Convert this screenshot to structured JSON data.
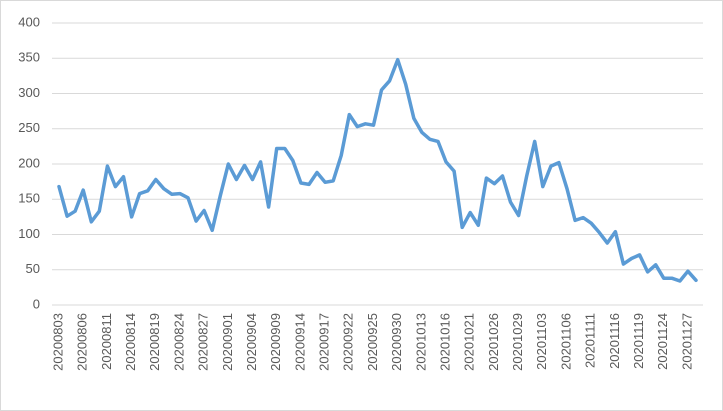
{
  "chart_data": {
    "type": "line",
    "categories": [
      "20200803",
      null,
      null,
      "20200806",
      null,
      null,
      "20200811",
      null,
      null,
      "20200814",
      null,
      null,
      "20200819",
      null,
      null,
      "20200824",
      null,
      null,
      "20200827",
      null,
      null,
      "20200901",
      null,
      null,
      "20200904",
      null,
      null,
      "20200909",
      null,
      null,
      "20200914",
      null,
      null,
      "20200917",
      null,
      null,
      "20200922",
      null,
      null,
      "20200925",
      null,
      null,
      "20200930",
      null,
      null,
      "20201013",
      null,
      null,
      "20201016",
      null,
      null,
      "20201021",
      null,
      null,
      "20201026",
      null,
      null,
      "20201029",
      null,
      null,
      "20201103",
      null,
      null,
      "20201106",
      null,
      null,
      "20201111",
      null,
      null,
      "20201116",
      null,
      null,
      "20201119",
      null,
      null,
      "20201124",
      null,
      null,
      "20201127",
      null
    ],
    "series": [
      {
        "color": "#5b9bd5",
        "values": [
          168,
          126,
          133,
          163,
          118,
          133,
          197,
          168,
          182,
          125,
          158,
          162,
          178,
          165,
          157,
          158,
          152,
          119,
          134,
          106,
          155,
          200,
          178,
          198,
          178,
          203,
          139,
          222,
          222,
          205,
          173,
          171,
          188,
          174,
          176,
          212,
          270,
          253,
          257,
          255,
          305,
          318,
          348,
          313,
          265,
          245,
          235,
          232,
          203,
          190,
          110,
          131,
          113,
          180,
          172,
          183,
          146,
          127,
          183,
          232,
          168,
          197,
          202,
          165,
          120,
          124,
          116,
          103,
          88,
          104,
          58,
          66,
          71,
          47,
          57,
          38,
          38,
          34,
          48,
          35
        ]
      }
    ],
    "ylim": [
      0,
      400
    ],
    "yticks": [
      0,
      50,
      100,
      150,
      200,
      250,
      300,
      350,
      400
    ],
    "grid": true
  }
}
